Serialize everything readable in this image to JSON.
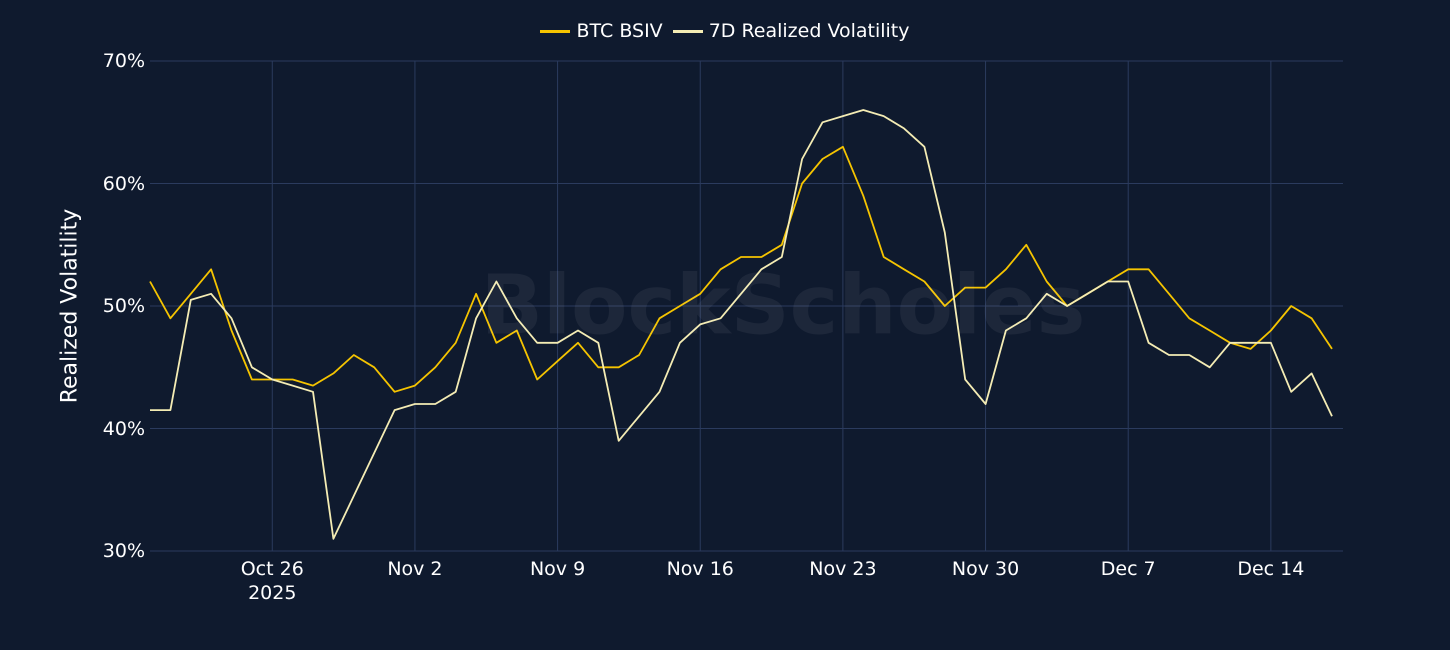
{
  "chart_data": {
    "type": "line",
    "watermark": "BlockScholes",
    "ylabel": "Realized Volatility",
    "x": [
      "2025-10-20",
      "2025-10-21",
      "2025-10-22",
      "2025-10-23",
      "2025-10-24",
      "2025-10-25",
      "2025-10-26",
      "2025-10-27",
      "2025-10-28",
      "2025-10-29",
      "2025-10-30",
      "2025-10-31",
      "2025-11-01",
      "2025-11-02",
      "2025-11-03",
      "2025-11-04",
      "2025-11-05",
      "2025-11-06",
      "2025-11-07",
      "2025-11-08",
      "2025-11-09",
      "2025-11-10",
      "2025-11-11",
      "2025-11-12",
      "2025-11-13",
      "2025-11-14",
      "2025-11-15",
      "2025-11-16",
      "2025-11-17",
      "2025-11-18",
      "2025-11-19",
      "2025-11-20",
      "2025-11-21",
      "2025-11-22",
      "2025-11-23",
      "2025-11-24",
      "2025-11-25",
      "2025-11-26",
      "2025-11-27",
      "2025-11-28",
      "2025-11-29",
      "2025-11-30",
      "2025-12-01",
      "2025-12-02",
      "2025-12-03",
      "2025-12-04",
      "2025-12-05",
      "2025-12-06",
      "2025-12-07",
      "2025-12-08",
      "2025-12-09",
      "2025-12-10",
      "2025-12-11",
      "2025-12-12",
      "2025-12-13",
      "2025-12-14",
      "2025-12-15",
      "2025-12-16",
      "2025-12-17"
    ],
    "series": [
      {
        "name": "BTC BSIV",
        "color": "#f5c400",
        "values": [
          52,
          49,
          51,
          53,
          48,
          44,
          44,
          44,
          43.5,
          44.5,
          46,
          45,
          43,
          43.5,
          45,
          47,
          51,
          47,
          48,
          44,
          45.5,
          47,
          45,
          45,
          46,
          49,
          50,
          51,
          53,
          54,
          54,
          55,
          60,
          62,
          63,
          59,
          54,
          53,
          52,
          50,
          51.5,
          51.5,
          53,
          55,
          52,
          50,
          51,
          52,
          53,
          53,
          51,
          49,
          48,
          47,
          46.5,
          48,
          50,
          49,
          46.5
        ]
      },
      {
        "name": "7D Realized Volatility",
        "color": "#f4ecb4",
        "values": [
          41.5,
          41.5,
          50.5,
          51,
          49,
          45,
          44,
          43.5,
          43,
          31,
          34.5,
          38,
          41.5,
          42,
          42,
          43,
          49,
          52,
          49,
          47,
          47,
          48,
          47,
          39,
          41,
          43,
          47,
          48.5,
          49,
          51,
          53,
          54,
          62,
          65,
          65.5,
          66,
          65.5,
          64.5,
          63,
          56,
          44,
          42,
          48,
          49,
          51,
          50,
          51,
          52,
          52,
          47,
          46,
          46,
          45,
          47,
          47,
          47,
          43,
          44.5,
          41
        ]
      }
    ],
    "xlim": [
      "2025-10-20",
      "2025-12-17"
    ],
    "xticks": [
      {
        "value": "2025-10-26",
        "label": "Oct 26\n2025"
      },
      {
        "value": "2025-11-02",
        "label": "Nov 2"
      },
      {
        "value": "2025-11-09",
        "label": "Nov 9"
      },
      {
        "value": "2025-11-16",
        "label": "Nov 16"
      },
      {
        "value": "2025-11-23",
        "label": "Nov 23"
      },
      {
        "value": "2025-11-30",
        "label": "Nov 30"
      },
      {
        "value": "2025-12-07",
        "label": "Dec 7"
      },
      {
        "value": "2025-12-14",
        "label": "Dec 14"
      }
    ],
    "ylim": [
      30,
      70
    ],
    "yticks": [
      {
        "value": 30,
        "label": "30%"
      },
      {
        "value": 40,
        "label": "40%"
      },
      {
        "value": 50,
        "label": "50%"
      },
      {
        "value": 60,
        "label": "60%"
      },
      {
        "value": 70,
        "label": "70%"
      }
    ],
    "grid": true,
    "legend": "top"
  }
}
